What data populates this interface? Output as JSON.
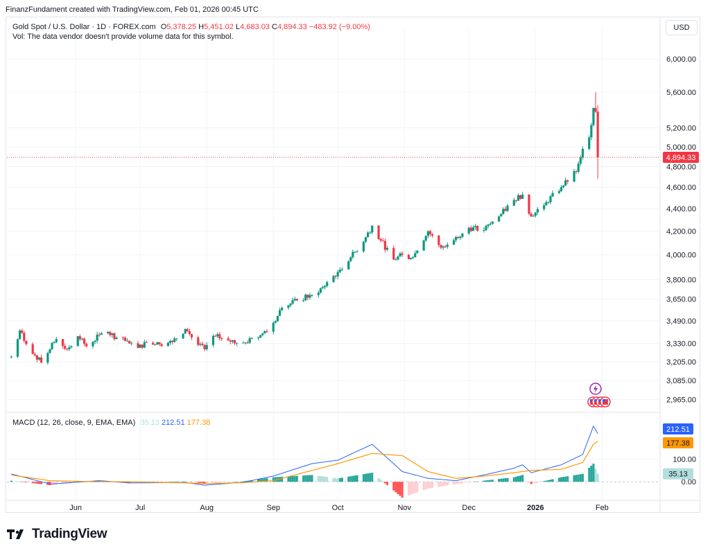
{
  "credit": "FinanzFundament created with TradingView.com, Feb 01, 2026 00:45 UTC",
  "symbol": "Gold Spot / U.S. Dollar · 1D · FOREX.com",
  "ohlc": {
    "o_label": "O",
    "o": "5,378.25",
    "h_label": "H",
    "h": "5,451.02",
    "l_label": "L",
    "l": "4,683.03",
    "c_label": "C",
    "c": "4,894.33",
    "chg": "−483.92 (−9.00%)"
  },
  "vol_note": "Vol: The data vendor doesn't provide volume data for this symbol.",
  "currency_button": "USD",
  "colors": {
    "up": "#089981",
    "down": "#f23645",
    "macd": "#2962ff",
    "signal": "#ff9800",
    "hist_up": "#26a69a",
    "hist_up_light": "#b2dfdb",
    "hist_down": "#ff5252",
    "hist_down_light": "#ffcdd2",
    "grid": "#f0f3fa"
  },
  "macd_legend": {
    "title": "MACD (12, 26, close, 9, EMA, EMA)",
    "hist": "35.13",
    "macd": "212.51",
    "signal": "177.38"
  },
  "macd_axis": {
    "ticks": [
      "100.00",
      "0.00"
    ],
    "badge_macd": "212.51",
    "badge_signal": "177.38",
    "badge_hist": "35.13"
  },
  "logo_text": "TradingView",
  "icons": [
    "lightning-event-icon",
    "us-flag-event-icon",
    "tradingview-logo-icon"
  ],
  "chart_data": {
    "type": "candlestick",
    "price_axis": [
      "6,000.00",
      "5,600.00",
      "5,200.00",
      "5,000.00",
      "4,800.00",
      "4,600.00",
      "4,400.00",
      "4,200.00",
      "4,000.00",
      "3,800.00",
      "3,650.00",
      "3,490.00",
      "3,330.00",
      "3,205.00",
      "3,085.00",
      "2,965.00"
    ],
    "last_price": "4,894.33",
    "x_labels": [
      "Jun",
      "Jul",
      "Aug",
      "Sep",
      "Oct",
      "Nov",
      "Dec",
      "2026",
      "Feb"
    ],
    "log_scale": true,
    "close_series": [
      {
        "date": "2025-05-02",
        "close": 3240
      },
      {
        "date": "2025-05-06",
        "close": 3420
      },
      {
        "date": "2025-05-09",
        "close": 3325
      },
      {
        "date": "2025-05-13",
        "close": 3250
      },
      {
        "date": "2025-05-16",
        "close": 3200
      },
      {
        "date": "2025-05-20",
        "close": 3290
      },
      {
        "date": "2025-05-23",
        "close": 3360
      },
      {
        "date": "2025-05-28",
        "close": 3290
      },
      {
        "date": "2025-06-02",
        "close": 3380
      },
      {
        "date": "2025-06-06",
        "close": 3310
      },
      {
        "date": "2025-06-12",
        "close": 3390
      },
      {
        "date": "2025-06-16",
        "close": 3410
      },
      {
        "date": "2025-06-20",
        "close": 3370
      },
      {
        "date": "2025-06-26",
        "close": 3330
      },
      {
        "date": "2025-06-30",
        "close": 3300
      },
      {
        "date": "2025-07-04",
        "close": 3335
      },
      {
        "date": "2025-07-10",
        "close": 3325
      },
      {
        "date": "2025-07-16",
        "close": 3340
      },
      {
        "date": "2025-07-22",
        "close": 3430
      },
      {
        "date": "2025-07-28",
        "close": 3320
      },
      {
        "date": "2025-07-31",
        "close": 3290
      },
      {
        "date": "2025-08-05",
        "close": 3380
      },
      {
        "date": "2025-08-11",
        "close": 3350
      },
      {
        "date": "2025-08-18",
        "close": 3335
      },
      {
        "date": "2025-08-25",
        "close": 3370
      },
      {
        "date": "2025-09-01",
        "close": 3475
      },
      {
        "date": "2025-09-05",
        "close": 3585
      },
      {
        "date": "2025-09-12",
        "close": 3640
      },
      {
        "date": "2025-09-19",
        "close": 3680
      },
      {
        "date": "2025-09-25",
        "close": 3750
      },
      {
        "date": "2025-10-01",
        "close": 3860
      },
      {
        "date": "2025-10-07",
        "close": 3980
      },
      {
        "date": "2025-10-13",
        "close": 4110
      },
      {
        "date": "2025-10-17",
        "close": 4250
      },
      {
        "date": "2025-10-21",
        "close": 4120
      },
      {
        "date": "2025-10-27",
        "close": 3960
      },
      {
        "date": "2025-10-31",
        "close": 4000
      },
      {
        "date": "2025-11-05",
        "close": 3980
      },
      {
        "date": "2025-11-12",
        "close": 4200
      },
      {
        "date": "2025-11-18",
        "close": 4060
      },
      {
        "date": "2025-11-25",
        "close": 4150
      },
      {
        "date": "2025-12-01",
        "close": 4230
      },
      {
        "date": "2025-12-08",
        "close": 4210
      },
      {
        "date": "2025-12-15",
        "close": 4330
      },
      {
        "date": "2025-12-22",
        "close": 4480
      },
      {
        "date": "2025-12-26",
        "close": 4530
      },
      {
        "date": "2025-12-30",
        "close": 4330
      },
      {
        "date": "2026-01-06",
        "close": 4460
      },
      {
        "date": "2026-01-13",
        "close": 4600
      },
      {
        "date": "2026-01-20",
        "close": 4750
      },
      {
        "date": "2026-01-23",
        "close": 4980
      },
      {
        "date": "2026-01-26",
        "close": 5100
      },
      {
        "date": "2026-01-28",
        "close": 5420
      },
      {
        "date": "2026-01-29",
        "close": 5378
      },
      {
        "date": "2026-01-30",
        "close": 4894
      }
    ],
    "macd_series": [
      {
        "date": "2025-05-02",
        "macd": 35,
        "signal": 30
      },
      {
        "date": "2025-05-20",
        "macd": -10,
        "signal": 5
      },
      {
        "date": "2025-06-12",
        "macd": 5,
        "signal": 0
      },
      {
        "date": "2025-06-26",
        "macd": -5,
        "signal": 0
      },
      {
        "date": "2025-07-22",
        "macd": -3,
        "signal": -5
      },
      {
        "date": "2025-07-31",
        "macd": -15,
        "signal": -8
      },
      {
        "date": "2025-08-18",
        "macd": -2,
        "signal": -4
      },
      {
        "date": "2025-09-01",
        "macd": 25,
        "signal": 5
      },
      {
        "date": "2025-09-19",
        "macd": 80,
        "signal": 50
      },
      {
        "date": "2025-10-01",
        "macd": 95,
        "signal": 80
      },
      {
        "date": "2025-10-17",
        "macd": 165,
        "signal": 125
      },
      {
        "date": "2025-10-31",
        "macd": 45,
        "signal": 115
      },
      {
        "date": "2025-11-12",
        "macd": 15,
        "signal": 45
      },
      {
        "date": "2025-11-25",
        "macd": 5,
        "signal": 15
      },
      {
        "date": "2025-12-08",
        "macd": 30,
        "signal": 25
      },
      {
        "date": "2025-12-22",
        "macd": 60,
        "signal": 40
      },
      {
        "date": "2025-12-26",
        "macd": 75,
        "signal": 45
      },
      {
        "date": "2025-12-30",
        "macd": 40,
        "signal": 50
      },
      {
        "date": "2026-01-13",
        "macd": 75,
        "signal": 55
      },
      {
        "date": "2026-01-23",
        "macd": 120,
        "signal": 85
      },
      {
        "date": "2026-01-28",
        "macd": 245,
        "signal": 165
      },
      {
        "date": "2026-01-30",
        "macd": 212.51,
        "signal": 177.38
      }
    ]
  }
}
